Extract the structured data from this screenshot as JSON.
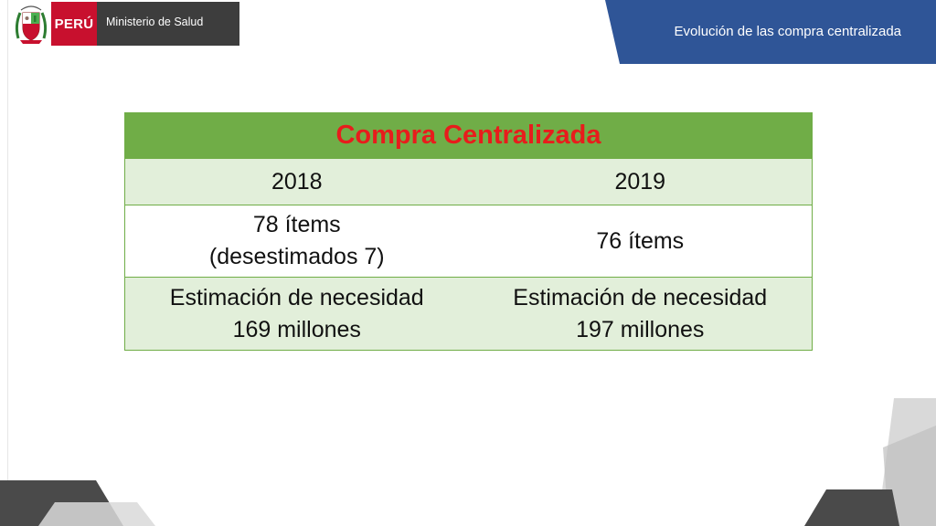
{
  "logo": {
    "country": "PERÚ",
    "ministry": "Ministerio de Salud"
  },
  "header": {
    "title": "Evolución de las compra centralizada"
  },
  "table": {
    "title": "Compra Centralizada",
    "columns": [
      "2018",
      "2019"
    ],
    "items_row": {
      "col1_line1": "78 ítems",
      "col1_line2": "(desestimados 7)",
      "col2": "76 ítems"
    },
    "estimate_row": {
      "col1_line1": "Estimación de necesidad",
      "col1_line2": "169 millones",
      "col2_line1": "Estimación de necesidad",
      "col2_line2": "197 millones"
    }
  },
  "colors": {
    "banner": "#2f5597",
    "table_header": "#70ad47",
    "title_text": "#e81c1c",
    "row_shade": "#e2efda",
    "logo_red": "#c8102e",
    "logo_gray": "#3d3d3d"
  },
  "icons": [
    "peru-coat-of-arms-icon"
  ]
}
